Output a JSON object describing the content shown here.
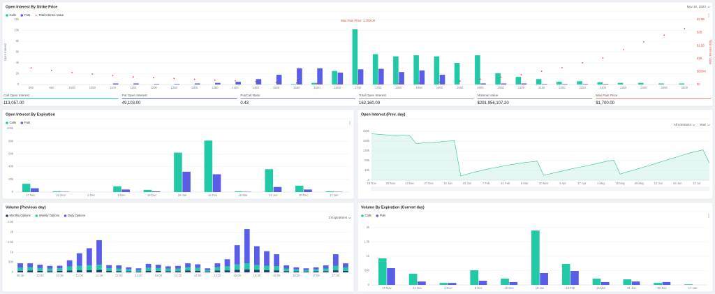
{
  "chart_data": [
    {
      "type": "bar",
      "title": "Open Interest By Strike Price",
      "date": "Nov 10, 2023",
      "y_label": "Open Interest",
      "y2_label": "Total Intrinsic Value",
      "grid": true,
      "categories": [
        900,
        950,
        1000,
        1050,
        1100,
        1150,
        1200,
        1250,
        1300,
        1350,
        1400,
        1450,
        1500,
        1550,
        1600,
        1650,
        1700,
        1750,
        1800,
        1850,
        1900,
        1950,
        2000,
        2050,
        2100,
        2150,
        2200,
        2250,
        2300,
        2350,
        2400,
        2450,
        2500
      ],
      "series": [
        {
          "name": "Calls",
          "color": "#22c9a6",
          "values": [
            0,
            0,
            0,
            0,
            0,
            0,
            0,
            0,
            0,
            0,
            0,
            0,
            0,
            100,
            300,
            2500,
            10200,
            5600,
            5200,
            5400,
            5200,
            4000,
            5400,
            2100,
            1400,
            1000,
            500,
            600,
            400,
            300,
            300,
            200,
            200
          ]
        },
        {
          "name": "Puts",
          "color": "#5a5de8",
          "values": [
            0,
            0,
            0,
            0,
            200,
            200,
            100,
            100,
            200,
            300,
            500,
            1000,
            1800,
            3000,
            3000,
            2200,
            2800,
            2900,
            2300,
            2600,
            1800,
            0,
            200,
            200,
            200,
            100,
            100,
            100,
            100,
            0,
            0,
            0,
            0
          ]
        },
        {
          "name": "Total Intrinsic Value",
          "color": "#ef4444",
          "type": "scatter",
          "axis": "y2",
          "values": [
            640,
            540,
            460,
            400,
            340,
            290,
            260,
            230,
            200,
            170,
            140,
            110,
            85,
            60,
            35,
            15,
            0,
            10,
            30,
            60,
            90,
            130,
            200,
            280,
            376,
            510,
            645,
            833,
            1022,
            1344,
            1640,
            1900,
            2150
          ]
        }
      ],
      "ylim": [
        0,
        12000
      ],
      "yticks": [
        0,
        {
          "value": 2000,
          "label": "2k"
        },
        {
          "value": 4000,
          "label": "4k"
        },
        {
          "value": 6000,
          "label": "6k"
        },
        {
          "value": 8000,
          "label": "8k"
        },
        {
          "value": 10000,
          "label": "10k"
        },
        {
          "value": 12000,
          "label": "12k"
        }
      ],
      "y2lim": [
        0,
        2500
      ],
      "y2ticks": [
        {
          "value": 0,
          "label": "$0"
        },
        {
          "value": 500,
          "label": "$500M"
        },
        {
          "value": 1000,
          "label": "$1B"
        },
        {
          "value": 1500,
          "label": "$1.5B"
        },
        {
          "value": 2000,
          "label": "$2B"
        },
        {
          "value": 2500,
          "label": "$2.5B"
        }
      ],
      "annotations": [
        {
          "text": "Max Pain Price: 1,700.00",
          "x": 1700
        }
      ]
    },
    {
      "type": "bar",
      "title": "Open Interest By Expiration",
      "grid": true,
      "categories": [
        "17 Nov",
        "24 Nov",
        "1 Dec",
        "8 Dec",
        "15 Dec",
        "19 Jan",
        "16 Feb",
        "15 Mar",
        "21 Jun",
        "20 Dec",
        "17 Jan"
      ],
      "series": [
        {
          "name": "Calls",
          "color": "#22c9a6",
          "values": [
            13000,
            1000,
            0,
            9000,
            3500,
            62000,
            81000,
            1000,
            36000,
            10000,
            1000
          ]
        },
        {
          "name": "Puts",
          "color": "#5a5de8",
          "values": [
            6000,
            500,
            0,
            4000,
            1000,
            32000,
            28000,
            500,
            8000,
            4000,
            500
          ]
        }
      ],
      "ylim": [
        0,
        100000
      ],
      "yticks": [
        0,
        {
          "value": 20000,
          "label": "20k"
        },
        {
          "value": 40000,
          "label": "40k"
        },
        {
          "value": 60000,
          "label": "60k"
        },
        {
          "value": 80000,
          "label": "80k"
        },
        {
          "value": 100000,
          "label": "100k"
        }
      ]
    },
    {
      "type": "area",
      "title": "Open Interest (Prev. day)",
      "controls": [
        "All contracts",
        "Year"
      ],
      "grid": true,
      "color": "#2bbf94",
      "categories": [
        "15 Nov",
        null,
        null,
        "29 Nov",
        null,
        null,
        "13 Dec",
        null,
        null,
        "27 Dec",
        null,
        null,
        "10 Jan",
        null,
        null,
        "24 Jan",
        null,
        null,
        "7 Feb",
        null,
        null,
        "21 Feb",
        null,
        null,
        "6 Mar",
        null,
        null,
        "20 Mar",
        null,
        null,
        "3 Apr",
        null,
        null,
        "17 Apr",
        null,
        null,
        "1 May",
        null,
        null,
        "15 May",
        null,
        null,
        "29 May",
        null,
        null,
        "12 Jun",
        null,
        null,
        "26 Jun",
        null,
        null,
        "10 Jul",
        null,
        null
      ],
      "values": [
        190000,
        188000,
        186000,
        184000,
        183000,
        185000,
        182000,
        150000,
        152000,
        155000,
        153000,
        158000,
        160000,
        162000,
        17000,
        25000,
        32000,
        38000,
        44000,
        50000,
        54000,
        60000,
        64000,
        68000,
        72000,
        75000,
        78000,
        20000,
        26000,
        32000,
        38000,
        44000,
        50000,
        55000,
        60000,
        66000,
        72000,
        78000,
        82000,
        25000,
        33000,
        40000,
        48000,
        56000,
        64000,
        72000,
        80000,
        88000,
        96000,
        104000,
        112000,
        118000,
        124000,
        70000
      ],
      "ylim": [
        0,
        200000
      ],
      "yticks": [
        0,
        {
          "value": 40000,
          "label": "40k"
        },
        {
          "value": 80000,
          "label": "80k"
        },
        {
          "value": 120000,
          "label": "120k"
        },
        {
          "value": 160000,
          "label": "160k"
        },
        {
          "value": 200000,
          "label": "200k"
        }
      ]
    },
    {
      "type": "bar",
      "stacked": true,
      "title": "Volume (Previous day)",
      "controls": [
        "3 Expirations"
      ],
      "grid": true,
      "categories": [
        "09:30",
        null,
        "10:00",
        null,
        "10:30",
        null,
        "11:00",
        null,
        "11:30",
        null,
        "12:00",
        null,
        "12:30",
        null,
        "13:00",
        null,
        "13:30",
        null,
        "14:00",
        null,
        "14:30",
        null,
        "15:00",
        null,
        "15:30",
        null,
        "16:00",
        null,
        "16:30",
        null,
        "17:00",
        null,
        "17:30",
        null
      ],
      "series": [
        {
          "name": "Monthly Options",
          "color": "#25386f",
          "values": [
            80,
            90,
            70,
            60,
            70,
            90,
            100,
            110,
            120,
            70,
            60,
            50,
            40,
            80,
            70,
            60,
            60,
            90,
            80,
            40,
            90,
            100,
            130,
            150,
            120,
            110,
            100,
            60,
            50,
            40,
            50,
            60,
            100,
            80
          ]
        },
        {
          "name": "Weekly Options",
          "color": "#22c9a6",
          "values": [
            150,
            160,
            140,
            120,
            130,
            200,
            220,
            240,
            260,
            140,
            130,
            100,
            80,
            150,
            140,
            120,
            120,
            160,
            150,
            80,
            160,
            200,
            260,
            300,
            240,
            220,
            200,
            130,
            100,
            80,
            100,
            130,
            220,
            160
          ]
        },
        {
          "name": "Daily Options",
          "color": "#5a5de8",
          "values": [
            220,
            200,
            170,
            140,
            130,
            310,
            630,
            850,
            1220,
            150,
            160,
            100,
            80,
            190,
            170,
            120,
            140,
            200,
            170,
            80,
            200,
            350,
            960,
            1700,
            940,
            720,
            600,
            160,
            100,
            80,
            100,
            160,
            580,
            210
          ]
        }
      ],
      "ylim": [
        0,
        2500
      ],
      "yticks": [
        0,
        500,
        {
          "value": 1000,
          "label": "1k"
        },
        {
          "value": 1500,
          "label": "1.5k"
        },
        {
          "value": 2000,
          "label": "2k"
        },
        {
          "value": 2500,
          "label": "2.5k"
        }
      ]
    },
    {
      "type": "bar",
      "title": "Volume By Expiration (Current day)",
      "grid": true,
      "categories": [
        "17 Nov",
        "24 Nov",
        "1 Dec",
        "8 Dec",
        "15 Dec",
        "19 Jan",
        "16 Feb",
        "15 Mar",
        "21 Jun",
        "20 Dec",
        "17 Jan"
      ],
      "series": [
        {
          "name": "Calls",
          "color": "#22c9a6",
          "values": [
            927,
            390,
            70,
            512,
            220,
            1900,
            732,
            220,
            195,
            70,
            20
          ]
        },
        {
          "name": "Puts",
          "color": "#5a5de8",
          "values": [
            585,
            120,
            70,
            146,
            100,
            415,
            488,
            100,
            120,
            100,
            0
          ]
        }
      ],
      "ylim": [
        0,
        2000
      ],
      "yticks": [
        0,
        500,
        {
          "value": 1000,
          "label": "1k"
        },
        {
          "value": 1500,
          "label": "1.5k"
        },
        {
          "value": 2000,
          "label": "2k"
        }
      ]
    }
  ],
  "stats": [
    {
      "label": "Call Open Interest",
      "value": "113,057.00",
      "color": "#22c9a6"
    },
    {
      "label": "Put Open Interest",
      "value": "49,103.00",
      "color": "#5a5de8"
    },
    {
      "label": "Put/Call Ratio",
      "value": "0.43",
      "color": "#8f7fe0"
    },
    {
      "label": "Total Open Interest",
      "value": "162,160.00",
      "color": "#9aa4b2"
    },
    {
      "label": "Notional Value",
      "value": "$291,956,107.20",
      "color": "#7f8fa6"
    },
    {
      "label": "Max Pain Price",
      "value": "$1,700.00",
      "color": "#f08080"
    }
  ]
}
